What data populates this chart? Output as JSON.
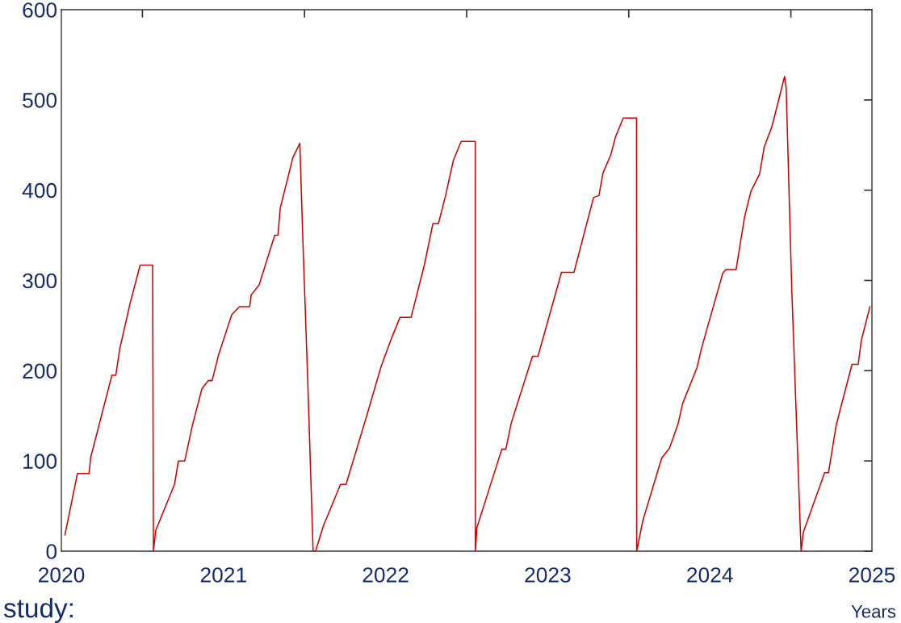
{
  "chart_data": {
    "type": "line",
    "xlabel": "Years",
    "annotations": [
      "study:"
    ],
    "xlim": [
      2020,
      2025
    ],
    "ylim": [
      0,
      600
    ],
    "yticks": [
      0,
      100,
      200,
      300,
      400,
      500,
      600
    ],
    "xticks": [
      2020,
      {
        "value": 2020.5,
        "label": null
      },
      2021,
      {
        "value": 2021.5,
        "label": null
      },
      2022,
      {
        "value": 2022.5,
        "label": null
      },
      2023,
      {
        "value": 2023.5,
        "label": null
      },
      2024,
      {
        "value": 2024.5,
        "label": null
      },
      2025
    ],
    "grid": false,
    "legend": false,
    "marker": "none",
    "line_style": "solid",
    "series": [
      {
        "color": "#cc0000",
        "x": [
          2020.022,
          2020.099,
          2020.171,
          2020.181,
          2020.312,
          2020.336,
          2020.36,
          2020.423,
          2020.486,
          2020.563,
          2020.568,
          2020.582,
          2020.698,
          2020.722,
          2020.761,
          2020.809,
          2020.867,
          2020.906,
          2020.93,
          2020.969,
          2021.051,
          2021.099,
          2021.162,
          2021.171,
          2021.22,
          2021.316,
          2021.336,
          2021.35,
          2021.428,
          2021.471,
          2021.49,
          2021.519,
          2021.553,
          2021.568,
          2021.616,
          2021.722,
          2021.756,
          2021.877,
          2021.973,
          2022.041,
          2022.089,
          2022.157,
          2022.239,
          2022.292,
          2022.326,
          2022.37,
          2022.418,
          2022.466,
          2022.553,
          2022.554,
          2022.563,
          2022.717,
          2022.742,
          2022.775,
          2022.906,
          2022.94,
          2023.085,
          2023.162,
          2023.283,
          2023.316,
          2023.341,
          2023.389,
          2023.418,
          2023.466,
          2023.548,
          2023.549,
          2023.587,
          2023.703,
          2023.751,
          2023.804,
          2023.833,
          2023.92,
          2023.949,
          2024.08,
          2024.099,
          2024.162,
          2024.215,
          2024.254,
          2024.307,
          2024.336,
          2024.384,
          2024.461,
          2024.471,
          2024.505,
          2024.563,
          2024.577,
          2024.708,
          2024.732,
          2024.78,
          2024.877,
          2024.915,
          2024.935,
          2024.988
        ],
        "values": [
          18,
          86,
          86,
          104,
          195,
          195,
          224,
          274,
          317,
          317,
          0,
          23,
          74,
          100,
          100,
          140,
          180,
          189,
          189,
          217,
          262,
          271,
          271,
          284,
          295,
          350,
          350,
          380,
          436,
          452,
          343,
          193,
          0,
          0,
          28,
          74,
          74,
          146,
          205,
          238,
          259,
          259,
          317,
          363,
          363,
          394,
          433,
          454,
          454,
          0,
          26,
          113,
          113,
          142,
          216,
          216,
          309,
          309,
          392,
          394,
          419,
          439,
          459,
          480,
          480,
          0,
          34,
          103,
          114,
          141,
          164,
          203,
          225,
          308,
          312,
          312,
          371,
          399,
          418,
          448,
          471,
          526,
          513,
          293,
          0,
          21,
          87,
          87,
          140,
          207,
          207,
          234,
          271
        ]
      }
    ]
  }
}
